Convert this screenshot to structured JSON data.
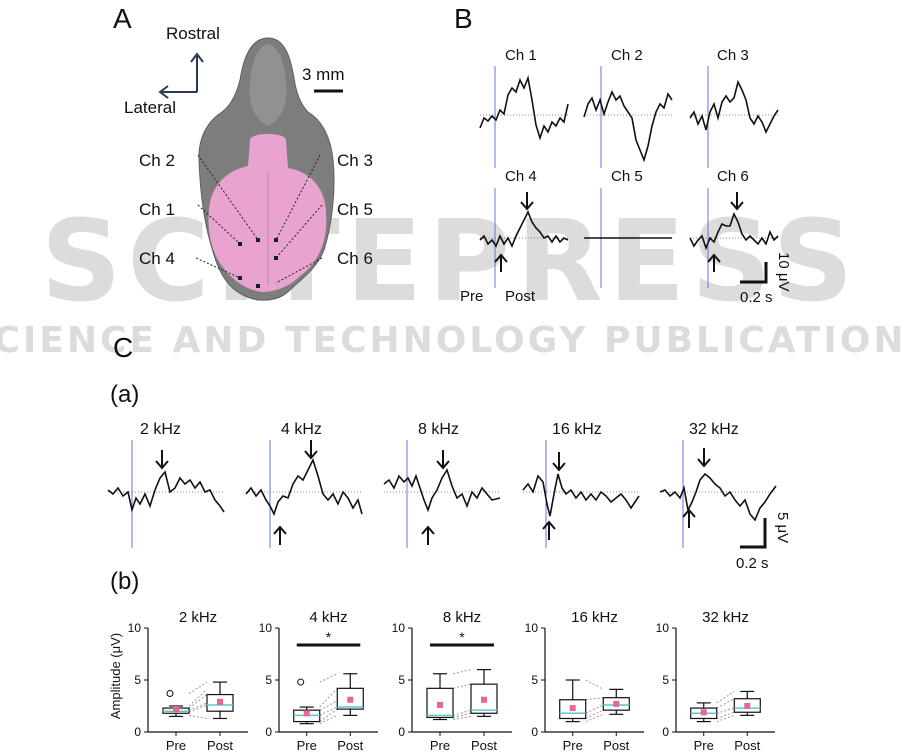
{
  "panel_labels": {
    "a": "A",
    "b": "B",
    "c": "C",
    "ca": "(a)",
    "cb": "(b)"
  },
  "watermark": {
    "main": "SCITEPRESS",
    "sub": "SCIENCE AND TECHNOLOGY PUBLICATIONS"
  },
  "panel_a": {
    "orientation": {
      "rostral": "Rostral",
      "lateral": "Lateral"
    },
    "scale_label": "3 mm",
    "channels": [
      "Ch 2",
      "Ch 3",
      "Ch 1",
      "Ch 5",
      "Ch 4",
      "Ch 6"
    ],
    "colors": {
      "skull": "#7d7d7d",
      "brain": "#e9a3cf"
    }
  },
  "panel_b": {
    "channels": [
      "Ch 1",
      "Ch 2",
      "Ch 3",
      "Ch 4",
      "Ch 5",
      "Ch 6"
    ],
    "pre_label": "Pre",
    "post_label": "Post",
    "scale_y": "10 μV",
    "scale_x": "0.2 s",
    "stimulus_line_color": "#5b78d6"
  },
  "panel_c_a": {
    "frequencies": [
      "2 kHz",
      "4 kHz",
      "8 kHz",
      "16 kHz",
      "32 kHz"
    ],
    "scale_y": "5 μV",
    "scale_x": "0.2 s"
  },
  "chart_data": [
    {
      "type": "box",
      "title": "2 kHz",
      "ylabel": "Amplitude (μV)",
      "categories": [
        "Pre",
        "Post"
      ],
      "ylim": [
        0,
        10
      ],
      "yticks": [
        0,
        5,
        10
      ],
      "boxes": [
        {
          "min": 1.5,
          "q1": 1.8,
          "median": 2.0,
          "q3": 2.3,
          "max": 2.5,
          "mean": 2.2,
          "outliers": [
            3.7
          ]
        },
        {
          "min": 1.3,
          "q1": 2.0,
          "median": 2.6,
          "q3": 3.6,
          "max": 4.8,
          "mean": 2.9,
          "outliers": []
        }
      ],
      "pairs": [
        [
          1.6,
          1.3
        ],
        [
          1.9,
          2.6
        ],
        [
          2.1,
          2.8
        ],
        [
          2.3,
          3.6
        ],
        [
          2.5,
          4.1
        ],
        [
          3.7,
          4.8
        ]
      ],
      "significance": ""
    },
    {
      "type": "box",
      "title": "4 kHz",
      "categories": [
        "Pre",
        "Post"
      ],
      "ylim": [
        0,
        10
      ],
      "yticks": [
        0,
        5,
        10
      ],
      "boxes": [
        {
          "min": 0.8,
          "q1": 1.0,
          "median": 1.6,
          "q3": 2.1,
          "max": 2.4,
          "mean": 1.8,
          "outliers": [
            4.8
          ]
        },
        {
          "min": 1.6,
          "q1": 2.2,
          "median": 2.4,
          "q3": 4.2,
          "max": 5.6,
          "mean": 3.1,
          "outliers": []
        }
      ],
      "pairs": [
        [
          0.8,
          1.6
        ],
        [
          1.0,
          2.2
        ],
        [
          1.6,
          2.4
        ],
        [
          2.1,
          3.0
        ],
        [
          2.4,
          4.2
        ],
        [
          4.8,
          5.6
        ]
      ],
      "significance": "*"
    },
    {
      "type": "box",
      "title": "8 kHz",
      "categories": [
        "Pre",
        "Post"
      ],
      "ylim": [
        0,
        10
      ],
      "yticks": [
        0,
        5,
        10
      ],
      "boxes": [
        {
          "min": 1.2,
          "q1": 1.4,
          "median": 1.6,
          "q3": 4.2,
          "max": 5.6,
          "mean": 2.6,
          "outliers": []
        },
        {
          "min": 1.5,
          "q1": 1.8,
          "median": 2.1,
          "q3": 4.6,
          "max": 6.0,
          "mean": 3.1,
          "outliers": []
        }
      ],
      "pairs": [
        [
          1.2,
          1.5
        ],
        [
          1.4,
          1.8
        ],
        [
          1.6,
          2.1
        ],
        [
          4.2,
          4.6
        ],
        [
          5.6,
          6.0
        ]
      ],
      "significance": "*"
    },
    {
      "type": "box",
      "title": "16 kHz",
      "categories": [
        "Pre",
        "Post"
      ],
      "ylim": [
        0,
        10
      ],
      "yticks": [
        0,
        5,
        10
      ],
      "boxes": [
        {
          "min": 1.0,
          "q1": 1.3,
          "median": 1.8,
          "q3": 3.1,
          "max": 5.0,
          "mean": 2.3,
          "outliers": []
        },
        {
          "min": 1.7,
          "q1": 2.1,
          "median": 2.6,
          "q3": 3.3,
          "max": 4.1,
          "mean": 2.7,
          "outliers": []
        }
      ],
      "pairs": [
        [
          1.0,
          1.7
        ],
        [
          1.3,
          2.1
        ],
        [
          1.8,
          2.6
        ],
        [
          3.1,
          3.3
        ],
        [
          5.0,
          4.1
        ]
      ],
      "significance": ""
    },
    {
      "type": "box",
      "title": "32 kHz",
      "categories": [
        "Pre",
        "Post"
      ],
      "ylim": [
        0,
        10
      ],
      "yticks": [
        0,
        5,
        10
      ],
      "boxes": [
        {
          "min": 1.0,
          "q1": 1.3,
          "median": 1.8,
          "q3": 2.3,
          "max": 2.8,
          "mean": 1.9,
          "outliers": []
        },
        {
          "min": 1.6,
          "q1": 1.9,
          "median": 2.3,
          "q3": 3.2,
          "max": 3.9,
          "mean": 2.5,
          "outliers": []
        }
      ],
      "pairs": [
        [
          1.0,
          1.6
        ],
        [
          1.3,
          1.9
        ],
        [
          1.8,
          2.3
        ],
        [
          2.3,
          3.2
        ],
        [
          2.8,
          3.9
        ]
      ],
      "significance": ""
    }
  ],
  "box_colors": {
    "mean_marker": "#e8649c",
    "median_line": "#5fc6c8",
    "pair_line": "#999999"
  }
}
